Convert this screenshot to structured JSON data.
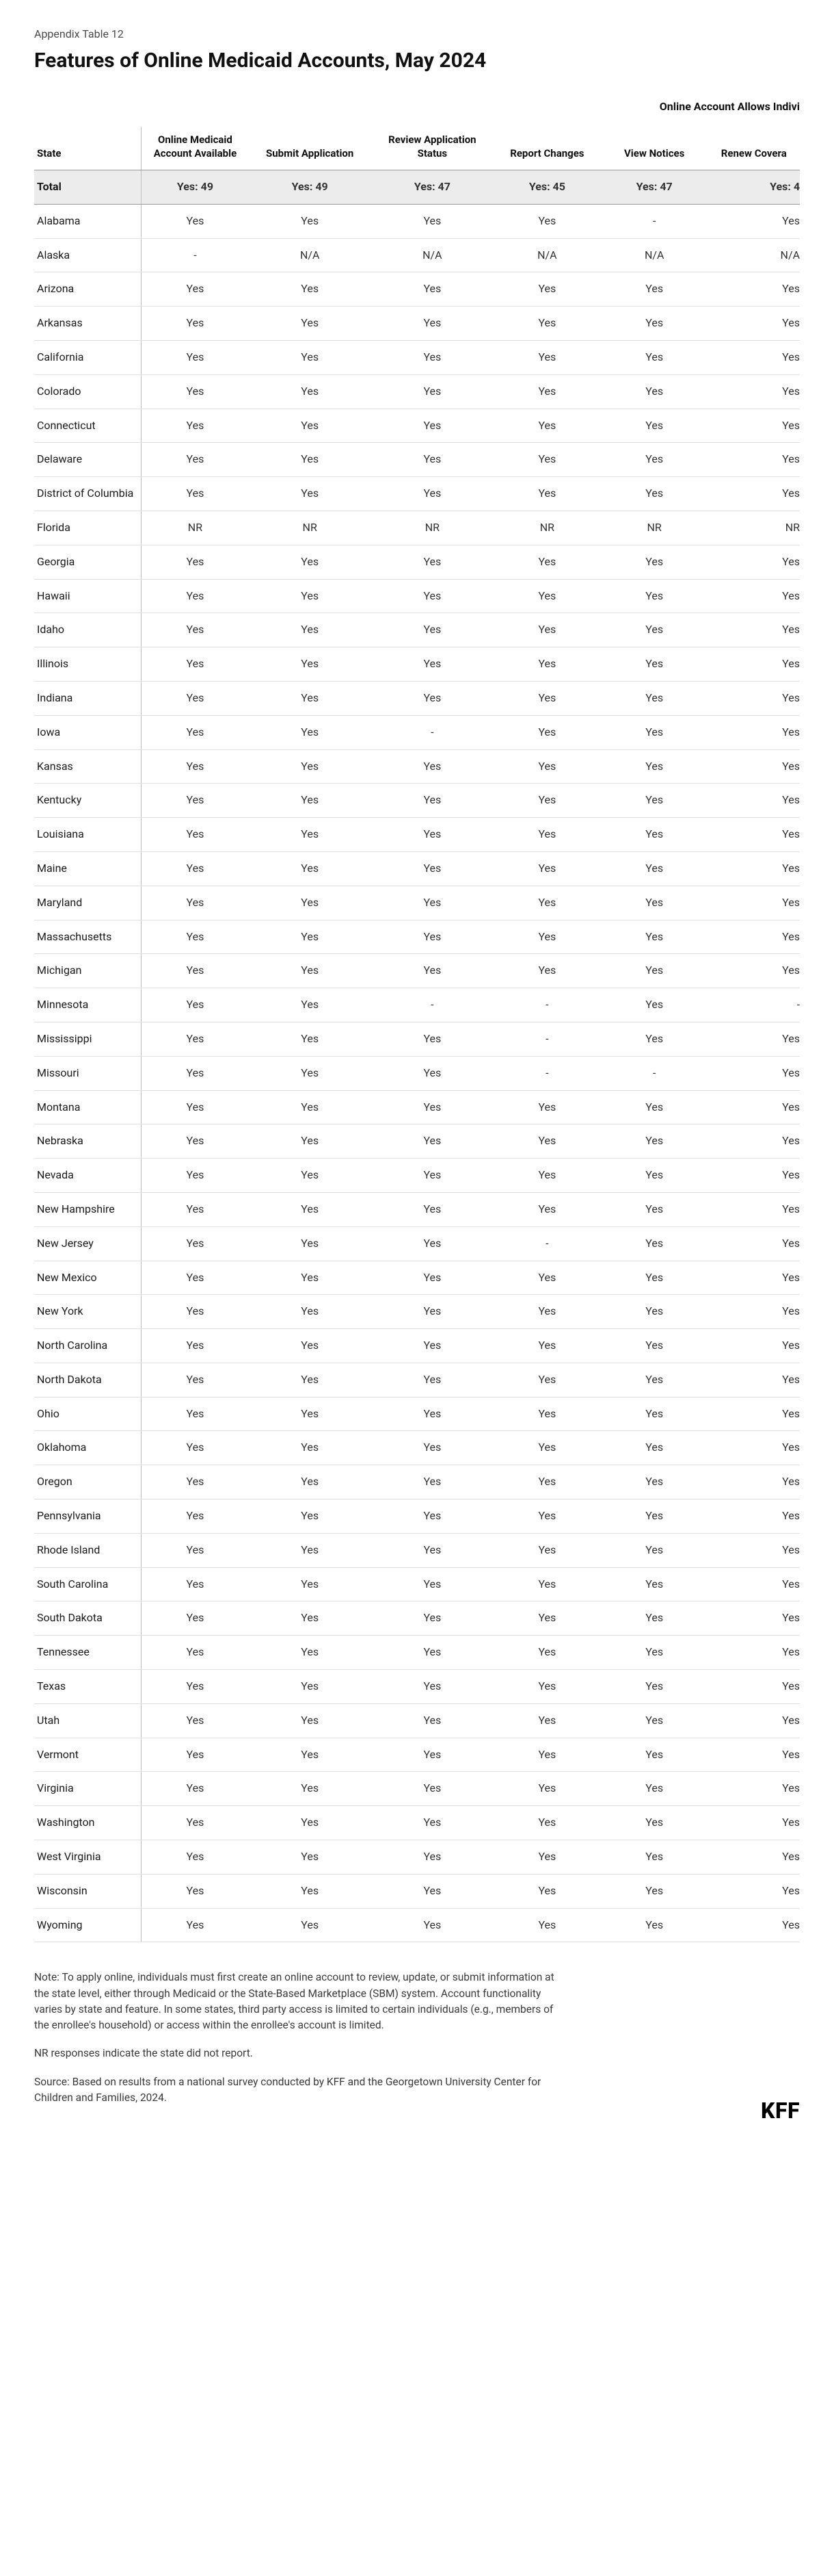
{
  "supertitle": "Appendix Table 12",
  "title": "Features of Online Medicaid Accounts, May 2024",
  "metaHeader": "Online Account Allows Indivi",
  "columns": [
    "State",
    "Online Medicaid Account Available",
    "Submit Application",
    "Review Application Status",
    "Report Changes",
    "View Notices",
    "Renew Covera"
  ],
  "totalRow": [
    "Total",
    "Yes: 49",
    "Yes: 49",
    "Yes: 47",
    "Yes: 45",
    "Yes: 47",
    "Yes: 4"
  ],
  "rows": [
    [
      "Alabama",
      "Yes",
      "Yes",
      "Yes",
      "Yes",
      "-",
      "Yes"
    ],
    [
      "Alaska",
      "-",
      "N/A",
      "N/A",
      "N/A",
      "N/A",
      "N/A"
    ],
    [
      "Arizona",
      "Yes",
      "Yes",
      "Yes",
      "Yes",
      "Yes",
      "Yes"
    ],
    [
      "Arkansas",
      "Yes",
      "Yes",
      "Yes",
      "Yes",
      "Yes",
      "Yes"
    ],
    [
      "California",
      "Yes",
      "Yes",
      "Yes",
      "Yes",
      "Yes",
      "Yes"
    ],
    [
      "Colorado",
      "Yes",
      "Yes",
      "Yes",
      "Yes",
      "Yes",
      "Yes"
    ],
    [
      "Connecticut",
      "Yes",
      "Yes",
      "Yes",
      "Yes",
      "Yes",
      "Yes"
    ],
    [
      "Delaware",
      "Yes",
      "Yes",
      "Yes",
      "Yes",
      "Yes",
      "Yes"
    ],
    [
      "District of Columbia",
      "Yes",
      "Yes",
      "Yes",
      "Yes",
      "Yes",
      "Yes"
    ],
    [
      "Florida",
      "NR",
      "NR",
      "NR",
      "NR",
      "NR",
      "NR"
    ],
    [
      "Georgia",
      "Yes",
      "Yes",
      "Yes",
      "Yes",
      "Yes",
      "Yes"
    ],
    [
      "Hawaii",
      "Yes",
      "Yes",
      "Yes",
      "Yes",
      "Yes",
      "Yes"
    ],
    [
      "Idaho",
      "Yes",
      "Yes",
      "Yes",
      "Yes",
      "Yes",
      "Yes"
    ],
    [
      "Illinois",
      "Yes",
      "Yes",
      "Yes",
      "Yes",
      "Yes",
      "Yes"
    ],
    [
      "Indiana",
      "Yes",
      "Yes",
      "Yes",
      "Yes",
      "Yes",
      "Yes"
    ],
    [
      "Iowa",
      "Yes",
      "Yes",
      "-",
      "Yes",
      "Yes",
      "Yes"
    ],
    [
      "Kansas",
      "Yes",
      "Yes",
      "Yes",
      "Yes",
      "Yes",
      "Yes"
    ],
    [
      "Kentucky",
      "Yes",
      "Yes",
      "Yes",
      "Yes",
      "Yes",
      "Yes"
    ],
    [
      "Louisiana",
      "Yes",
      "Yes",
      "Yes",
      "Yes",
      "Yes",
      "Yes"
    ],
    [
      "Maine",
      "Yes",
      "Yes",
      "Yes",
      "Yes",
      "Yes",
      "Yes"
    ],
    [
      "Maryland",
      "Yes",
      "Yes",
      "Yes",
      "Yes",
      "Yes",
      "Yes"
    ],
    [
      "Massachusetts",
      "Yes",
      "Yes",
      "Yes",
      "Yes",
      "Yes",
      "Yes"
    ],
    [
      "Michigan",
      "Yes",
      "Yes",
      "Yes",
      "Yes",
      "Yes",
      "Yes"
    ],
    [
      "Minnesota",
      "Yes",
      "Yes",
      "-",
      "-",
      "Yes",
      "-"
    ],
    [
      "Mississippi",
      "Yes",
      "Yes",
      "Yes",
      "-",
      "Yes",
      "Yes"
    ],
    [
      "Missouri",
      "Yes",
      "Yes",
      "Yes",
      "-",
      "-",
      "Yes"
    ],
    [
      "Montana",
      "Yes",
      "Yes",
      "Yes",
      "Yes",
      "Yes",
      "Yes"
    ],
    [
      "Nebraska",
      "Yes",
      "Yes",
      "Yes",
      "Yes",
      "Yes",
      "Yes"
    ],
    [
      "Nevada",
      "Yes",
      "Yes",
      "Yes",
      "Yes",
      "Yes",
      "Yes"
    ],
    [
      "New Hampshire",
      "Yes",
      "Yes",
      "Yes",
      "Yes",
      "Yes",
      "Yes"
    ],
    [
      "New Jersey",
      "Yes",
      "Yes",
      "Yes",
      "-",
      "Yes",
      "Yes"
    ],
    [
      "New Mexico",
      "Yes",
      "Yes",
      "Yes",
      "Yes",
      "Yes",
      "Yes"
    ],
    [
      "New York",
      "Yes",
      "Yes",
      "Yes",
      "Yes",
      "Yes",
      "Yes"
    ],
    [
      "North Carolina",
      "Yes",
      "Yes",
      "Yes",
      "Yes",
      "Yes",
      "Yes"
    ],
    [
      "North Dakota",
      "Yes",
      "Yes",
      "Yes",
      "Yes",
      "Yes",
      "Yes"
    ],
    [
      "Ohio",
      "Yes",
      "Yes",
      "Yes",
      "Yes",
      "Yes",
      "Yes"
    ],
    [
      "Oklahoma",
      "Yes",
      "Yes",
      "Yes",
      "Yes",
      "Yes",
      "Yes"
    ],
    [
      "Oregon",
      "Yes",
      "Yes",
      "Yes",
      "Yes",
      "Yes",
      "Yes"
    ],
    [
      "Pennsylvania",
      "Yes",
      "Yes",
      "Yes",
      "Yes",
      "Yes",
      "Yes"
    ],
    [
      "Rhode Island",
      "Yes",
      "Yes",
      "Yes",
      "Yes",
      "Yes",
      "Yes"
    ],
    [
      "South Carolina",
      "Yes",
      "Yes",
      "Yes",
      "Yes",
      "Yes",
      "Yes"
    ],
    [
      "South Dakota",
      "Yes",
      "Yes",
      "Yes",
      "Yes",
      "Yes",
      "Yes"
    ],
    [
      "Tennessee",
      "Yes",
      "Yes",
      "Yes",
      "Yes",
      "Yes",
      "Yes"
    ],
    [
      "Texas",
      "Yes",
      "Yes",
      "Yes",
      "Yes",
      "Yes",
      "Yes"
    ],
    [
      "Utah",
      "Yes",
      "Yes",
      "Yes",
      "Yes",
      "Yes",
      "Yes"
    ],
    [
      "Vermont",
      "Yes",
      "Yes",
      "Yes",
      "Yes",
      "Yes",
      "Yes"
    ],
    [
      "Virginia",
      "Yes",
      "Yes",
      "Yes",
      "Yes",
      "Yes",
      "Yes"
    ],
    [
      "Washington",
      "Yes",
      "Yes",
      "Yes",
      "Yes",
      "Yes",
      "Yes"
    ],
    [
      "West Virginia",
      "Yes",
      "Yes",
      "Yes",
      "Yes",
      "Yes",
      "Yes"
    ],
    [
      "Wisconsin",
      "Yes",
      "Yes",
      "Yes",
      "Yes",
      "Yes",
      "Yes"
    ],
    [
      "Wyoming",
      "Yes",
      "Yes",
      "Yes",
      "Yes",
      "Yes",
      "Yes"
    ]
  ],
  "notes": [
    "Note: To apply online, individuals must first create an online account to review, update, or submit information at the state level, either through Medicaid or the State-Based Marketplace (SBM) system. Account functionality varies by state and feature. In some states, third party access is limited to certain individuals (e.g., members of the enrollee's household) or access within the enrollee's account is limited.",
    "NR responses indicate the state did not report.",
    "Source: Based on results from a national survey conducted by KFF and the Georgetown University Center for Children and Families, 2024."
  ],
  "footerLogo": "KFF"
}
